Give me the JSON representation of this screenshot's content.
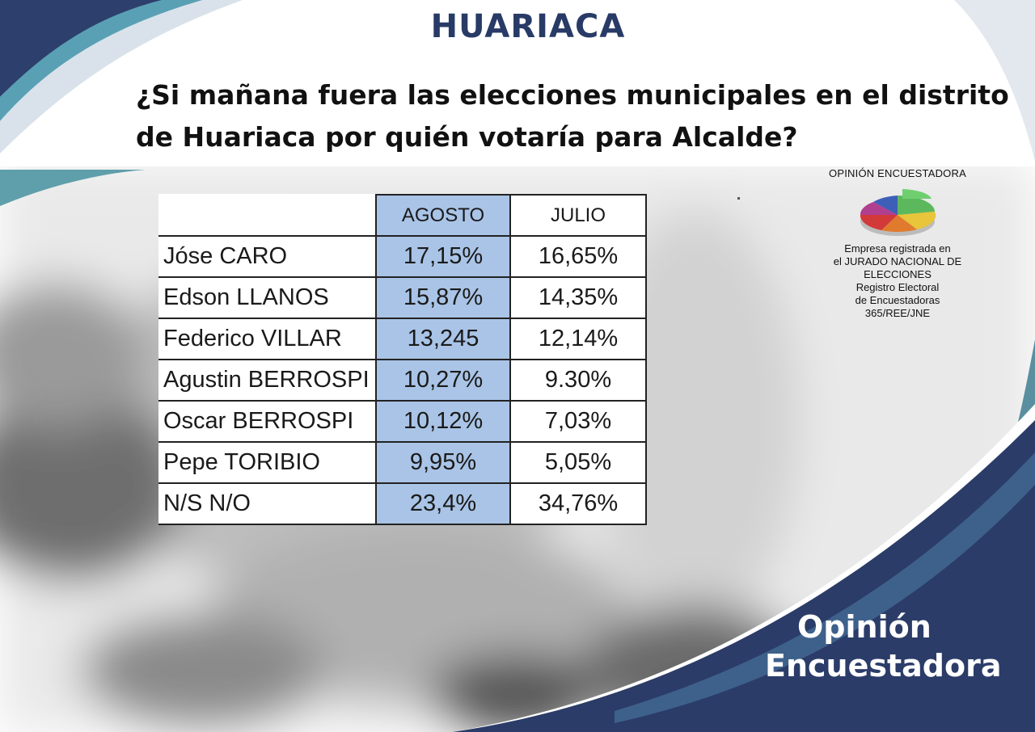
{
  "headline": "HUARIACA",
  "question": {
    "line1": "¿Si  mañana fuera las elecciones municipales en el distrito",
    "line2": "de Huariaca por quién votaría para Alcalde?"
  },
  "chart_data": {
    "type": "table",
    "columns": [
      "",
      "AGOSTO",
      "JULIO"
    ],
    "rows": [
      {
        "name": "Jóse CARO",
        "agosto": "17,15%",
        "julio": "16,65%"
      },
      {
        "name": "Edson LLANOS",
        "agosto": "15,87%",
        "julio": "14,35%"
      },
      {
        "name": "Federico VILLAR",
        "agosto": "13,245",
        "julio": "12,14%"
      },
      {
        "name": "Agustin BERROSPI",
        "agosto": "10,27%",
        "julio": "9.30%"
      },
      {
        "name": "Oscar BERROSPI",
        "agosto": "10,12%",
        "julio": "7,03%"
      },
      {
        "name": "Pepe TORIBIO",
        "agosto": "9,95%",
        "julio": "5,05%"
      },
      {
        "name": "N/S N/O",
        "agosto": "23,4%",
        "julio": "34,76%"
      }
    ]
  },
  "logo": {
    "title": "OPINIÓN ENCUESTADORA",
    "lines": [
      "Empresa registrada en",
      "el JURADO NACIONAL DE",
      "ELECCIONES",
      "Registro Electoral",
      "de Encuestadoras",
      "365/REE/JNE"
    ]
  },
  "brand": {
    "line1": "Opinión",
    "line2": "Encuestadora"
  },
  "colors": {
    "navy": "#283a66",
    "teal": "#5fa2a8",
    "agosto_fill": "#a9c4e6"
  }
}
